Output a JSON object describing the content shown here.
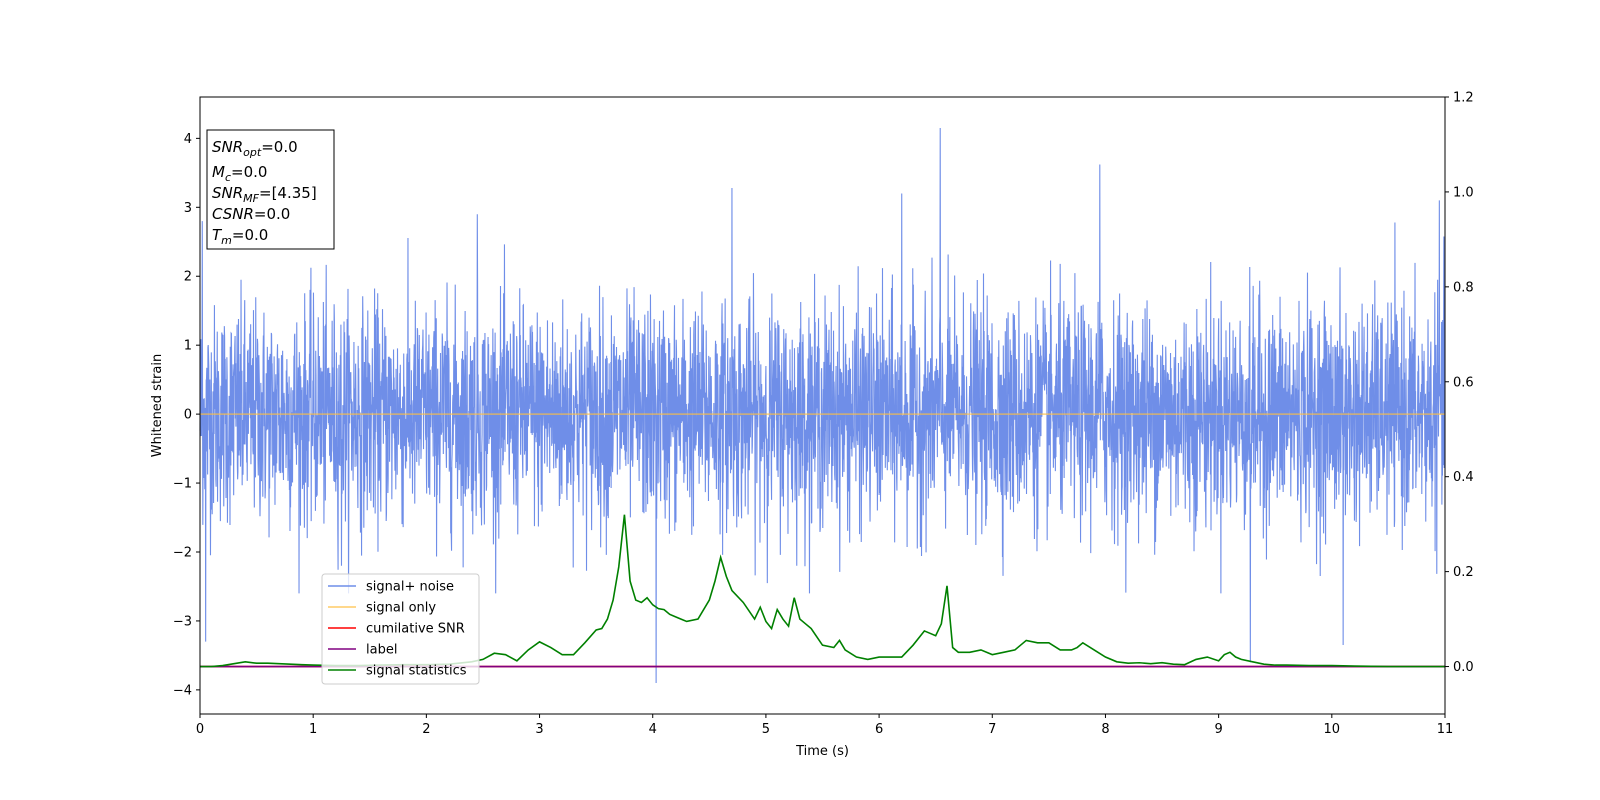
{
  "chart_data": {
    "type": "line",
    "title": "",
    "xlabel": "Time (s)",
    "ylabel": "Whitened strain",
    "xlim": [
      0,
      11
    ],
    "ylim": [
      -4.35,
      4.6
    ],
    "y2lim": [
      -0.1,
      1.2
    ],
    "x_ticks": [
      0,
      1,
      2,
      3,
      4,
      5,
      6,
      7,
      8,
      9,
      10,
      11
    ],
    "y_ticks": [
      -4,
      -3,
      -2,
      -1,
      0,
      1,
      2,
      3,
      4
    ],
    "y2_ticks": [
      "0.0",
      "0.2",
      "0.4",
      "0.6",
      "0.8",
      "1.0",
      "1.2"
    ],
    "grid": false,
    "legend_position": "lower-left",
    "colors": {
      "signal_noise": "#6f8ee8",
      "signal_only": "#ffbf40",
      "cumulative_snr": "#ff0000",
      "label": "#800080",
      "signal_statistics": "#008000"
    },
    "series": [
      {
        "name": "signal+ noise",
        "axis": "left",
        "description_values": "noisy whitened strain, roughly within [-2.5, 2.8] with spikes up to 4.15 and down to -3.9",
        "spikes": [
          [
            0.02,
            2.8
          ],
          [
            0.05,
            -3.3
          ],
          [
            1.25,
            -2.2
          ],
          [
            2.45,
            2.9
          ],
          [
            4.03,
            -3.9
          ],
          [
            4.7,
            3.28
          ],
          [
            6.2,
            3.2
          ],
          [
            6.54,
            4.15
          ],
          [
            7.95,
            3.62
          ],
          [
            9.28,
            -3.6
          ],
          [
            10.95,
            3.1
          ],
          [
            10.1,
            -3.35
          ]
        ]
      },
      {
        "name": "signal only",
        "axis": "left",
        "x": [
          0,
          11
        ],
        "y": [
          0,
          0
        ]
      },
      {
        "name": "cumilative SNR",
        "axis": "right",
        "x": [
          0,
          11
        ],
        "y": [
          0,
          0
        ]
      },
      {
        "name": "label",
        "axis": "right",
        "x": [
          0,
          11
        ],
        "y": [
          0,
          0
        ]
      },
      {
        "name": "signal statistics",
        "axis": "right",
        "x": [
          0,
          0.1,
          0.2,
          0.3,
          0.4,
          0.5,
          0.6,
          0.7,
          0.8,
          0.9,
          1.0,
          1.2,
          1.4,
          1.6,
          1.8,
          2.0,
          2.2,
          2.4,
          2.5,
          2.6,
          2.7,
          2.8,
          2.9,
          3.0,
          3.1,
          3.2,
          3.3,
          3.4,
          3.5,
          3.55,
          3.6,
          3.65,
          3.7,
          3.75,
          3.8,
          3.85,
          3.9,
          3.95,
          4.0,
          4.05,
          4.1,
          4.15,
          4.2,
          4.25,
          4.3,
          4.4,
          4.5,
          4.55,
          4.6,
          4.65,
          4.7,
          4.8,
          4.9,
          4.95,
          5.0,
          5.05,
          5.1,
          5.15,
          5.2,
          5.25,
          5.3,
          5.35,
          5.4,
          5.5,
          5.6,
          5.65,
          5.7,
          5.8,
          5.9,
          6.0,
          6.1,
          6.2,
          6.3,
          6.4,
          6.45,
          6.5,
          6.55,
          6.6,
          6.65,
          6.7,
          6.8,
          6.9,
          7.0,
          7.1,
          7.2,
          7.3,
          7.4,
          7.5,
          7.6,
          7.7,
          7.75,
          7.8,
          7.9,
          8.0,
          8.1,
          8.2,
          8.3,
          8.4,
          8.5,
          8.6,
          8.7,
          8.8,
          8.9,
          9.0,
          9.05,
          9.1,
          9.15,
          9.2,
          9.3,
          9.4,
          9.5,
          9.6,
          9.8,
          10.0,
          10.2,
          10.5,
          11.0
        ],
        "y": [
          0.0,
          0.0,
          0.002,
          0.006,
          0.01,
          0.007,
          0.007,
          0.006,
          0.005,
          0.004,
          0.003,
          0.002,
          0.002,
          0.003,
          0.004,
          0.004,
          0.005,
          0.01,
          0.015,
          0.028,
          0.025,
          0.012,
          0.035,
          0.052,
          0.04,
          0.025,
          0.025,
          0.05,
          0.077,
          0.08,
          0.1,
          0.14,
          0.21,
          0.32,
          0.18,
          0.14,
          0.135,
          0.145,
          0.13,
          0.122,
          0.12,
          0.11,
          0.105,
          0.1,
          0.095,
          0.1,
          0.14,
          0.18,
          0.23,
          0.19,
          0.16,
          0.135,
          0.1,
          0.125,
          0.095,
          0.08,
          0.12,
          0.1,
          0.085,
          0.145,
          0.1,
          0.09,
          0.08,
          0.045,
          0.04,
          0.055,
          0.035,
          0.02,
          0.015,
          0.02,
          0.02,
          0.02,
          0.045,
          0.075,
          0.07,
          0.065,
          0.09,
          0.17,
          0.04,
          0.03,
          0.03,
          0.035,
          0.025,
          0.03,
          0.035,
          0.055,
          0.05,
          0.05,
          0.035,
          0.035,
          0.04,
          0.05,
          0.035,
          0.02,
          0.01,
          0.007,
          0.008,
          0.006,
          0.008,
          0.005,
          0.004,
          0.015,
          0.02,
          0.012,
          0.025,
          0.03,
          0.02,
          0.015,
          0.01,
          0.005,
          0.003,
          0.003,
          0.002,
          0.002,
          0.001,
          0.0,
          0.0
        ]
      }
    ]
  },
  "info_box": {
    "lines": [
      {
        "main": "SNR",
        "sub": "opt",
        "value": "=0.0"
      },
      {
        "main": "M",
        "sub": "c",
        "value": "=0.0"
      },
      {
        "main": "SNR",
        "sub": "MF",
        "value": "=[4.35]"
      },
      {
        "main": "CSNR",
        "sub": "",
        "value": "=0.0"
      },
      {
        "main": "T",
        "sub": "m",
        "value": "=0.0"
      }
    ]
  },
  "legend": {
    "items": [
      {
        "label": "signal+ noise",
        "color": "#6f8ee8"
      },
      {
        "label": "signal only",
        "color": "#ffcc66"
      },
      {
        "label": "cumilative SNR",
        "color": "#ff0000"
      },
      {
        "label": "label",
        "color": "#800080"
      },
      {
        "label": "signal statistics",
        "color": "#008000"
      }
    ]
  }
}
